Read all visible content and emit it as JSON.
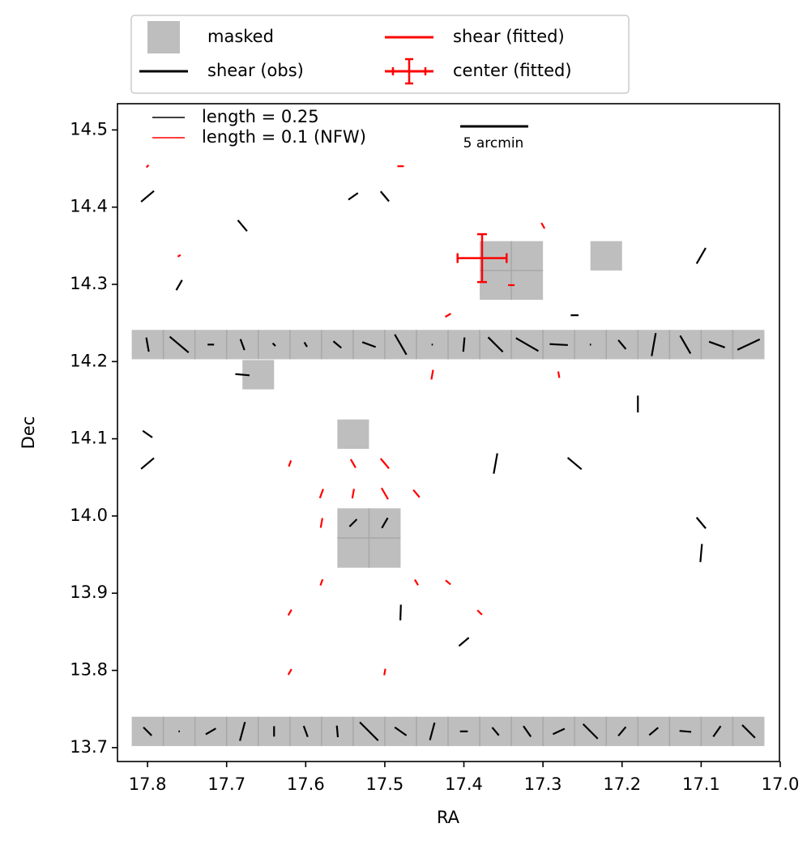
{
  "chart_data": {
    "type": "whisker",
    "x_label": "RA",
    "y_label": "Dec",
    "xlim": [
      17.838,
      17.001
    ],
    "ylim": [
      13.682,
      14.534
    ],
    "xticks": [
      17.8,
      17.7,
      17.6,
      17.5,
      17.4,
      17.3,
      17.2,
      17.1,
      {
        "value": 17.0,
        "label": "17.0"
      }
    ],
    "yticks": [
      13.7,
      13.8,
      13.9,
      {
        "value": 14.0,
        "label": "14.0"
      },
      14.1,
      14.2,
      14.3,
      14.4,
      14.5
    ],
    "legend": [
      {
        "name": "masked",
        "color": "#bebebe"
      },
      {
        "name": "shear (obs)",
        "color": "#000000"
      },
      {
        "name": "shear (fitted)",
        "color": "#ff0000"
      },
      {
        "name": "center (fitted)",
        "color": "#ff0000"
      }
    ],
    "length_keys": [
      {
        "label": "length = 0.25",
        "length": 0.25,
        "color": "#000000"
      },
      {
        "label": "length = 0.1 (NFW)",
        "length": 0.1,
        "color": "#ff0000"
      }
    ],
    "scale_bar": {
      "label": "5 arcmin",
      "length": 0.086
    },
    "masked_regions": [
      [
        17.82,
        17.02,
        14.203,
        14.241
      ],
      [
        17.82,
        17.02,
        13.702,
        13.74
      ],
      [
        17.38,
        17.3,
        14.28,
        14.356
      ],
      [
        17.24,
        17.2,
        14.318,
        14.356
      ],
      [
        17.68,
        17.64,
        14.164,
        14.202
      ],
      [
        17.56,
        17.52,
        14.087,
        14.125
      ],
      [
        17.56,
        17.48,
        13.933,
        14.01
      ]
    ],
    "center": {
      "ra": 17.377,
      "dec": 14.334,
      "ra_err": 0.031,
      "dec_err": 0.031,
      "color": "#ff0000"
    },
    "obs_sticks": [
      [
        17.8,
        14.222,
        0.11,
        -80
      ],
      [
        17.76,
        14.222,
        0.19,
        -40
      ],
      [
        17.72,
        14.222,
        0.05,
        0
      ],
      [
        17.68,
        14.222,
        0.09,
        -70
      ],
      [
        17.64,
        14.222,
        0.03,
        -45
      ],
      [
        17.6,
        14.222,
        0.04,
        -60
      ],
      [
        17.56,
        14.222,
        0.08,
        -40
      ],
      [
        17.52,
        14.222,
        0.11,
        -20
      ],
      [
        17.48,
        14.222,
        0.18,
        -60
      ],
      [
        17.44,
        14.222,
        0.01,
        0
      ],
      [
        17.4,
        14.222,
        0.11,
        85
      ],
      [
        17.36,
        14.222,
        0.16,
        -45
      ],
      [
        17.32,
        14.222,
        0.2,
        -30
      ],
      [
        17.28,
        14.222,
        0.14,
        -3
      ],
      [
        17.24,
        14.222,
        0.01,
        0
      ],
      [
        17.2,
        14.222,
        0.09,
        -50
      ],
      [
        17.16,
        14.222,
        0.18,
        80
      ],
      [
        17.12,
        14.222,
        0.16,
        -60
      ],
      [
        17.08,
        14.222,
        0.13,
        -20
      ],
      [
        17.04,
        14.222,
        0.19,
        25
      ],
      [
        17.8,
        13.721,
        0.09,
        -45
      ],
      [
        17.76,
        13.721,
        0.01,
        0
      ],
      [
        17.72,
        13.721,
        0.09,
        30
      ],
      [
        17.68,
        13.721,
        0.15,
        75
      ],
      [
        17.64,
        13.721,
        0.08,
        90
      ],
      [
        17.6,
        13.721,
        0.09,
        -70
      ],
      [
        17.56,
        13.721,
        0.09,
        -85
      ],
      [
        17.52,
        13.721,
        0.2,
        -45
      ],
      [
        17.48,
        13.721,
        0.11,
        -35
      ],
      [
        17.44,
        13.721,
        0.14,
        75
      ],
      [
        17.4,
        13.721,
        0.06,
        0
      ],
      [
        17.36,
        13.721,
        0.08,
        -50
      ],
      [
        17.32,
        13.721,
        0.1,
        -55
      ],
      [
        17.28,
        13.721,
        0.1,
        25
      ],
      [
        17.24,
        13.721,
        0.16,
        -45
      ],
      [
        17.2,
        13.721,
        0.09,
        50
      ],
      [
        17.16,
        13.721,
        0.09,
        40
      ],
      [
        17.12,
        13.721,
        0.09,
        -5
      ],
      [
        17.08,
        13.721,
        0.1,
        55
      ],
      [
        17.04,
        13.721,
        0.14,
        -45
      ],
      [
        17.8,
        14.414,
        0.13,
        40
      ],
      [
        17.8,
        14.068,
        0.13,
        40
      ],
      [
        17.8,
        14.106,
        0.09,
        -35
      ],
      [
        17.26,
        14.068,
        0.14,
        -40
      ],
      [
        17.36,
        14.068,
        0.16,
        80
      ],
      [
        17.1,
        14.337,
        0.14,
        60
      ],
      [
        17.18,
        14.145,
        0.13,
        90
      ],
      [
        17.1,
        13.991,
        0.11,
        -50
      ],
      [
        17.1,
        13.952,
        0.14,
        85
      ],
      [
        17.4,
        13.837,
        0.1,
        40
      ],
      [
        17.48,
        13.875,
        0.12,
        88
      ],
      [
        17.68,
        14.376,
        0.11,
        -50
      ],
      [
        17.68,
        14.183,
        0.11,
        -5
      ],
      [
        17.76,
        14.299,
        0.09,
        60
      ],
      [
        17.5,
        14.414,
        0.1,
        -50
      ],
      [
        17.54,
        14.414,
        0.09,
        35
      ],
      [
        17.26,
        14.26,
        0.06,
        0
      ],
      [
        17.54,
        13.991,
        0.08,
        45
      ],
      [
        17.5,
        13.991,
        0.09,
        60
      ]
    ],
    "model_sticks": [
      [
        17.54,
        14.068,
        0.03,
        -60
      ],
      [
        17.5,
        14.068,
        0.04,
        -50
      ],
      [
        17.54,
        14.029,
        0.03,
        80
      ],
      [
        17.5,
        14.029,
        0.04,
        -60
      ],
      [
        17.58,
        14.029,
        0.03,
        70
      ],
      [
        17.58,
        13.991,
        0.03,
        80
      ],
      [
        17.46,
        14.029,
        0.03,
        -50
      ],
      [
        17.62,
        14.068,
        0.02,
        70
      ],
      [
        17.42,
        13.914,
        0.02,
        -40
      ],
      [
        17.46,
        13.914,
        0.02,
        -60
      ],
      [
        17.58,
        13.914,
        0.02,
        70
      ],
      [
        17.62,
        13.875,
        0.02,
        60
      ],
      [
        17.38,
        13.875,
        0.02,
        -45
      ],
      [
        17.34,
        14.299,
        0.02,
        0
      ],
      [
        17.42,
        14.26,
        0.02,
        30
      ],
      [
        17.3,
        14.376,
        0.02,
        -60
      ],
      [
        17.8,
        14.453,
        0.01,
        45
      ],
      [
        17.76,
        14.337,
        0.01,
        30
      ],
      [
        17.48,
        14.453,
        0.02,
        0
      ],
      [
        17.28,
        14.183,
        0.02,
        -80
      ],
      [
        17.44,
        14.183,
        0.03,
        80
      ],
      [
        17.5,
        13.798,
        0.02,
        80
      ],
      [
        17.62,
        13.798,
        0.02,
        60
      ]
    ]
  }
}
